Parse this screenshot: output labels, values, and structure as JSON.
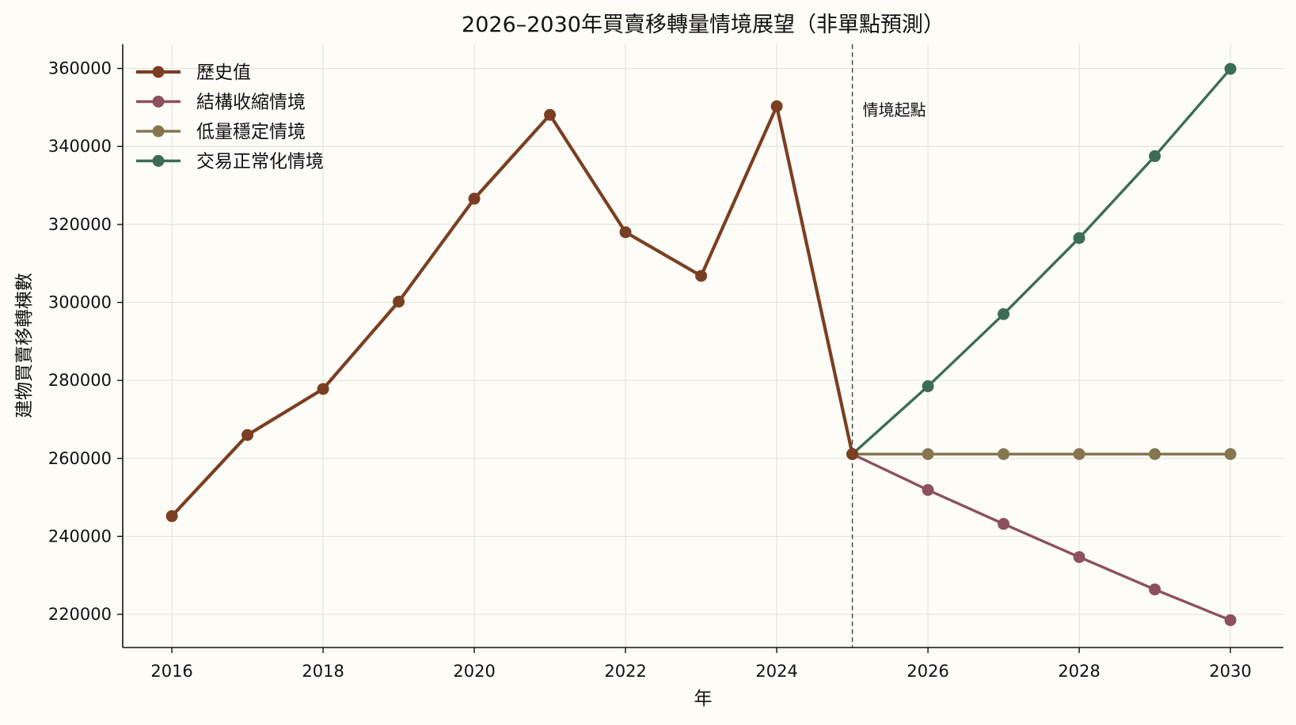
{
  "chart_data": {
    "type": "line",
    "title": "2026–2030年買賣移轉量情境展望（非單點預測）",
    "xlabel": "年",
    "ylabel": "建物買賣移轉棟數",
    "xlim": [
      2015.35,
      2030.7
    ],
    "ylim": [
      211500,
      366200
    ],
    "x_ticks": [
      2016,
      2018,
      2020,
      2022,
      2024,
      2026,
      2028,
      2030
    ],
    "y_ticks": [
      220000,
      240000,
      260000,
      280000,
      300000,
      320000,
      340000,
      360000
    ],
    "grid": true,
    "legend_position": "top-left",
    "annotation": {
      "text": "情境起點",
      "x": 2025
    },
    "series": [
      {
        "name": "歷史值",
        "color": "#7a3f22",
        "width": 4.2,
        "x": [
          2016,
          2017,
          2018,
          2019,
          2020,
          2021,
          2022,
          2023,
          2024,
          2025
        ],
        "y": [
          245200,
          266000,
          277800,
          300200,
          326600,
          348100,
          318000,
          306800,
          350300,
          261100
        ]
      },
      {
        "name": "結構收縮情境",
        "color": "#8c5060",
        "width": 3.4,
        "x": [
          2025,
          2026,
          2027,
          2028,
          2029,
          2030
        ],
        "y": [
          261100,
          251900,
          243200,
          234700,
          226400,
          218500
        ]
      },
      {
        "name": "低量穩定情境",
        "color": "#857650",
        "width": 3.4,
        "x": [
          2025,
          2026,
          2027,
          2028,
          2029,
          2030
        ],
        "y": [
          261100,
          261100,
          261100,
          261100,
          261100,
          261100
        ]
      },
      {
        "name": "交易正常化情境",
        "color": "#3c6c58",
        "width": 3.4,
        "x": [
          2025,
          2026,
          2027,
          2028,
          2029,
          2030
        ],
        "y": [
          261100,
          278500,
          297000,
          316500,
          337500,
          359900
        ]
      }
    ]
  }
}
